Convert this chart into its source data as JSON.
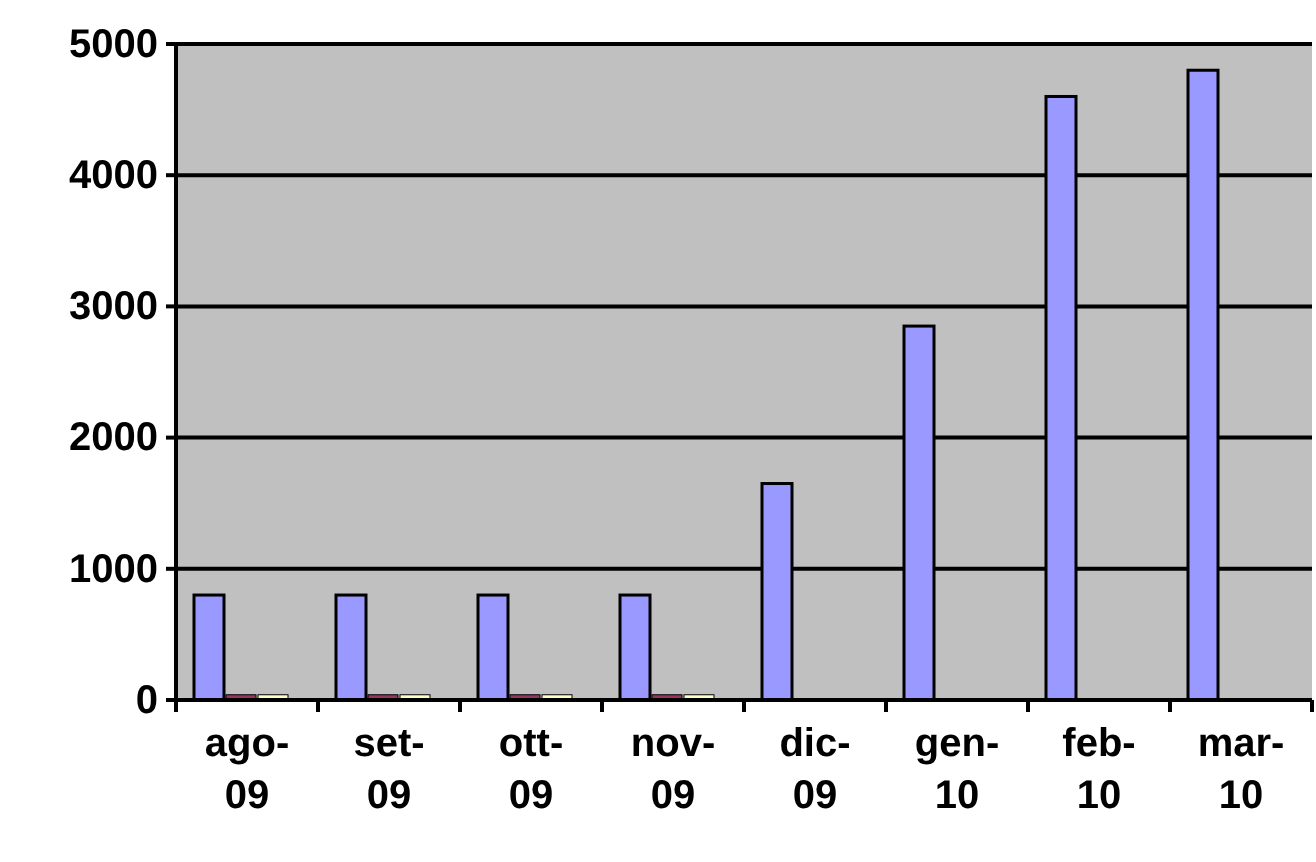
{
  "chart_data": {
    "type": "bar",
    "categories": [
      "ago-09",
      "set-09",
      "ott-09",
      "nov-09",
      "dic-09",
      "gen-10",
      "feb-10",
      "mar-10"
    ],
    "series": [
      {
        "color": "#9999ff",
        "values": [
          800,
          800,
          800,
          800,
          1650,
          2850,
          4600,
          4800
        ]
      },
      {
        "color": "#993366",
        "values": [
          40,
          40,
          40,
          40,
          null,
          null,
          null,
          null
        ]
      },
      {
        "color": "#ffffcc",
        "values": [
          40,
          40,
          40,
          40,
          null,
          null,
          null,
          null
        ]
      }
    ],
    "ylim": [
      0,
      5000
    ],
    "yticks": [
      0,
      1000,
      2000,
      3000,
      4000,
      5000
    ],
    "grid": "y"
  }
}
